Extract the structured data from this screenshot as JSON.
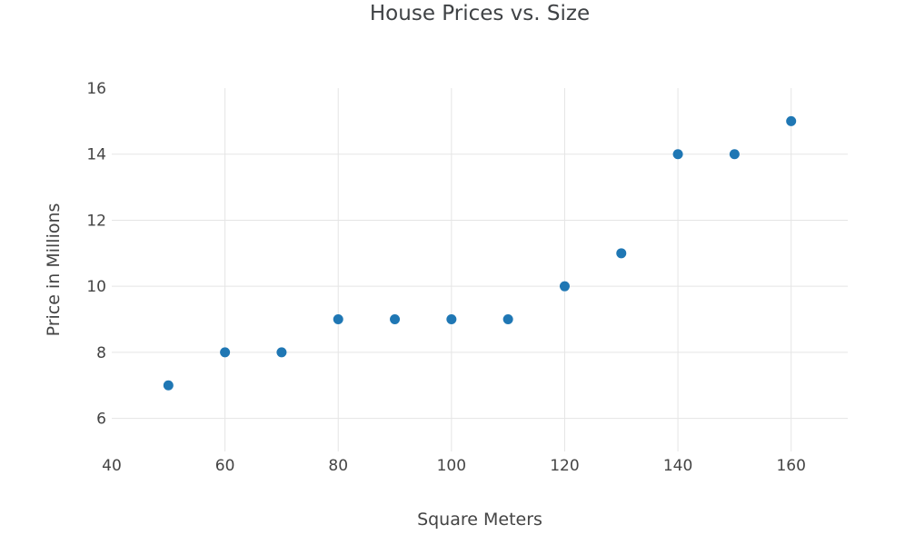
{
  "page": {
    "background_color": "#ffffff",
    "text_color": "#444444"
  },
  "chart_data": {
    "type": "scatter",
    "title": "House Prices vs. Size",
    "xlabel": "Square Meters",
    "ylabel": "Price in Millions",
    "x": [
      50,
      60,
      70,
      80,
      90,
      100,
      110,
      120,
      130,
      140,
      150,
      160
    ],
    "y": [
      7,
      8,
      8,
      9,
      9,
      9,
      9,
      10,
      11,
      14,
      14,
      15
    ],
    "xlim": [
      40,
      170
    ],
    "ylim": [
      5,
      16
    ],
    "xticks": [
      40,
      60,
      80,
      100,
      120,
      140,
      160
    ],
    "yticks": [
      6,
      8,
      10,
      12,
      14,
      16
    ],
    "grid": true,
    "legend": false,
    "marker_color": "#1f77b4",
    "marker_size": 11,
    "gridline_color": "#e5e5e5",
    "tick_label_color": "#444444"
  }
}
